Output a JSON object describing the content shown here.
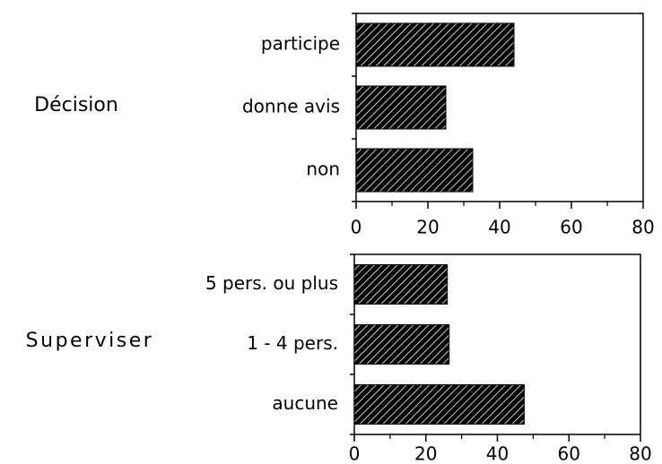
{
  "chart_data": [
    {
      "type": "bar",
      "title": "Décision",
      "categories": [
        "participe",
        "donne avis",
        "non"
      ],
      "values": [
        44,
        25,
        32.5
      ],
      "color": "#000000",
      "xlim": [
        0,
        80
      ],
      "xticks": [
        0,
        20,
        40,
        60,
        80
      ]
    },
    {
      "type": "bar",
      "title": "Superviser",
      "categories": [
        "5 pers. ou plus",
        "1 - 4 pers.",
        "aucune"
      ],
      "values": [
        26,
        26.5,
        47.5
      ],
      "color": "#000000",
      "xlim": [
        0,
        80
      ],
      "xticks": [
        0,
        20,
        40,
        60,
        80
      ]
    }
  ]
}
